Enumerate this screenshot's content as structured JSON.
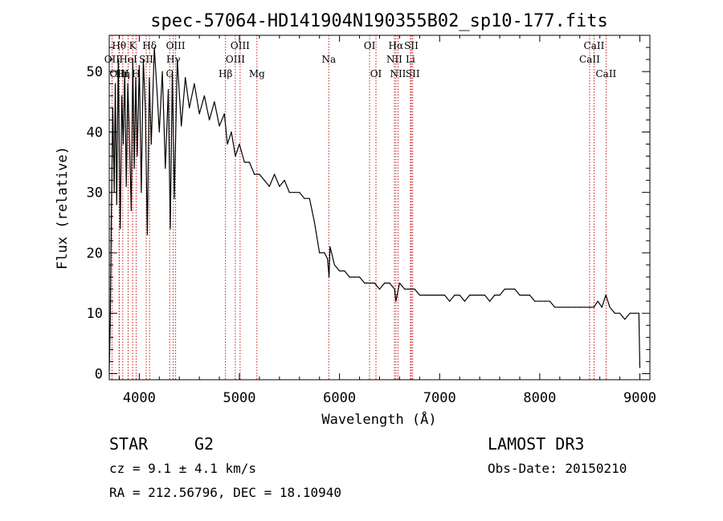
{
  "chart_data": {
    "type": "line",
    "title": "spec-57064-HD141904N190355B02_sp10-177.fits",
    "xlabel": "Wavelength (Å)",
    "ylabel": "Flux (relative)",
    "xlim": [
      3700,
      9100
    ],
    "ylim": [
      -1,
      56
    ],
    "xticks": [
      4000,
      5000,
      6000,
      7000,
      8000,
      9000
    ],
    "xtick_labels": [
      "4000",
      "5000",
      "6000",
      "7000",
      "8000",
      "9000"
    ],
    "yticks": [
      0,
      10,
      20,
      30,
      40,
      50
    ],
    "ytick_labels": [
      "0",
      "10",
      "20",
      "30",
      "40",
      "50"
    ],
    "grid": false,
    "series": [
      {
        "name": "flux",
        "x": [
          3700,
          3710,
          3720,
          3735,
          3750,
          3760,
          3775,
          3790,
          3800,
          3810,
          3825,
          3840,
          3855,
          3870,
          3885,
          3900,
          3920,
          3935,
          3950,
          3965,
          3980,
          4000,
          4020,
          4040,
          4060,
          4080,
          4100,
          4120,
          4150,
          4180,
          4200,
          4230,
          4260,
          4290,
          4310,
          4330,
          4350,
          4380,
          4420,
          4460,
          4500,
          4550,
          4600,
          4650,
          4700,
          4750,
          4800,
          4850,
          4880,
          4920,
          4960,
          5000,
          5050,
          5100,
          5150,
          5200,
          5250,
          5300,
          5350,
          5400,
          5450,
          5500,
          5550,
          5600,
          5650,
          5700,
          5750,
          5800,
          5850,
          5880,
          5895,
          5905,
          5920,
          5950,
          6000,
          6050,
          6100,
          6150,
          6200,
          6250,
          6300,
          6350,
          6400,
          6450,
          6500,
          6550,
          6563,
          6600,
          6650,
          6700,
          6750,
          6800,
          6850,
          6900,
          6950,
          7000,
          7050,
          7100,
          7150,
          7200,
          7250,
          7300,
          7350,
          7400,
          7450,
          7500,
          7550,
          7600,
          7650,
          7700,
          7750,
          7800,
          7850,
          7900,
          7950,
          8000,
          8050,
          8100,
          8150,
          8200,
          8250,
          8300,
          8350,
          8400,
          8450,
          8500,
          8540,
          8580,
          8620,
          8660,
          8700,
          8750,
          8800,
          8850,
          8900,
          8950,
          8990,
          9000
        ],
        "y": [
          0.5,
          8,
          25,
          44,
          30,
          48,
          28,
          52,
          37,
          24,
          46,
          38,
          50,
          31,
          48,
          40,
          27,
          52,
          34,
          49,
          36,
          51,
          30,
          52,
          44,
          23,
          49,
          38,
          54,
          46,
          40,
          50,
          34,
          47,
          24,
          50,
          29,
          52,
          41,
          49,
          44,
          48,
          43,
          46,
          42,
          45,
          41,
          43,
          38,
          40,
          36,
          38,
          35,
          35,
          33,
          33,
          32,
          31,
          33,
          31,
          32,
          30,
          30,
          30,
          29,
          29,
          25,
          20,
          20,
          19,
          16,
          21,
          20,
          18,
          17,
          17,
          16,
          16,
          16,
          15,
          15,
          15,
          14,
          15,
          15,
          14,
          12,
          15,
          14,
          14,
          14,
          13,
          13,
          13,
          13,
          13,
          13,
          12,
          13,
          13,
          12,
          13,
          13,
          13,
          13,
          12,
          13,
          13,
          14,
          14,
          14,
          13,
          13,
          13,
          12,
          12,
          12,
          12,
          11,
          11,
          11,
          11,
          11,
          11,
          11,
          11,
          11,
          12,
          11,
          13,
          11,
          10,
          10,
          9,
          10,
          10,
          10,
          1
        ]
      }
    ],
    "line_labels": [
      {
        "label": "OII",
        "x": 3727,
        "row": 2
      },
      {
        "label": "Hθ",
        "x": 3798,
        "row": 1
      },
      {
        "label": "OIII",
        "x": 3800,
        "row": 3
      },
      {
        "label": "HeI",
        "x": 3889,
        "row": 2
      },
      {
        "label": "Hη",
        "x": 3835,
        "row": 3
      },
      {
        "label": "K",
        "x": 3934,
        "row": 1
      },
      {
        "label": "SII",
        "x": 4069,
        "row": 2
      },
      {
        "label": "H",
        "x": 3968,
        "row": 3
      },
      {
        "label": "Hδ",
        "x": 4102,
        "row": 1
      },
      {
        "label": "OIII",
        "x": 4363,
        "row": 1
      },
      {
        "label": "Hγ",
        "x": 4340,
        "row": 2
      },
      {
        "label": "G",
        "x": 4304,
        "row": 3
      },
      {
        "label": "Hβ",
        "x": 4861,
        "row": 3
      },
      {
        "label": "OIII",
        "x": 5007,
        "row": 1
      },
      {
        "label": "OIII",
        "x": 4959,
        "row": 2
      },
      {
        "label": "Mg",
        "x": 5175,
        "row": 3
      },
      {
        "label": "Na",
        "x": 5893,
        "row": 2
      },
      {
        "label": "OI",
        "x": 6300,
        "row": 1
      },
      {
        "label": "OI",
        "x": 6364,
        "row": 3
      },
      {
        "label": "Hα",
        "x": 6563,
        "row": 1
      },
      {
        "label": "SII",
        "x": 6717,
        "row": 1
      },
      {
        "label": "NII",
        "x": 6548,
        "row": 2
      },
      {
        "label": "Li",
        "x": 6708,
        "row": 2
      },
      {
        "label": "NII",
        "x": 6584,
        "row": 3
      },
      {
        "label": "SII",
        "x": 6731,
        "row": 3
      },
      {
        "label": "CaII",
        "x": 8542,
        "row": 1
      },
      {
        "label": "CaII",
        "x": 8498,
        "row": 2
      },
      {
        "label": "CaII",
        "x": 8662,
        "row": 3
      }
    ],
    "line_marker_color": "#c00000",
    "trace_color": "#000000"
  },
  "info": {
    "object_class": "STAR",
    "subclass": "G2",
    "redshift": "cz = 9.1 ± 4.1 km/s",
    "coords": "RA = 212.56796, DEC =  18.10940",
    "survey": "LAMOST DR3",
    "obs_date": "Obs-Date: 20150210"
  }
}
